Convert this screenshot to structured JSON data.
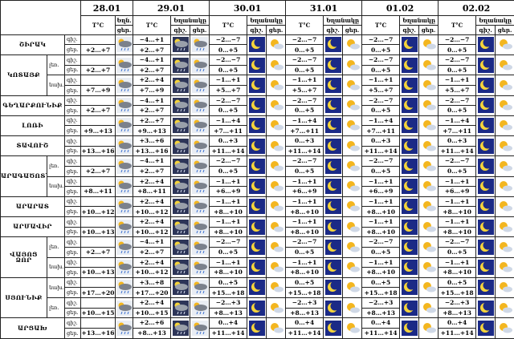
{
  "header": {
    "dates": [
      "28.01",
      "29.01",
      "30.01",
      "31.01",
      "01.02",
      "02.02"
    ],
    "temp_label": "T°C",
    "weather_short": "Եղն.",
    "weather_label": "Եղանակը",
    "night_label": "գիշ.",
    "day_label": "ցեր."
  },
  "regions": [
    {
      "name": "ՇԻՐԱԿ",
      "night": [
        "−4…+1",
        "−2…−7",
        "−2…−7",
        "−2…−7",
        "−2…−7"
      ],
      "day": [
        "+2…+7",
        "+2…+7",
        "0…+5",
        "0…+5",
        "0…+5",
        "0…+5"
      ]
    },
    {
      "name": "ԿՈՏԱՅՔ",
      "zones": [
        {
          "label": "լեռ.",
          "night": [
            "−4…+1",
            "−2…−7",
            "−2…−7",
            "−2…−7",
            "−2…−7"
          ],
          "day": [
            "+2…+7",
            "+2…+7",
            "0…+5",
            "0…+5",
            "0…+5",
            "0…+5"
          ]
        },
        {
          "label": "նախ.",
          "night": [
            "+2…+4",
            "−1…+1",
            "−1…+1",
            "−1…+1",
            "−1…+1"
          ],
          "day": [
            "+7…+9",
            "+7…+9",
            "+5…+7",
            "+5…+7",
            "+5…+7",
            "+5…+7"
          ]
        }
      ]
    },
    {
      "name": "ԳԵՂԱՐՔՈՒՆԻՔ",
      "night": [
        "−4…+1",
        "−2…−7",
        "−2…−7",
        "−2…−7",
        "−2…−7"
      ],
      "day": [
        "+2…+7",
        "+2…+7",
        "0…+5",
        "0…+5",
        "0…+5",
        "0…+5"
      ]
    },
    {
      "name": "ԼՈՌԻ",
      "night": [
        "+2…+7",
        "−1…+4",
        "−1…+4",
        "−1…+4",
        "−1…+4"
      ],
      "day": [
        "+9…+13",
        "+9…+13",
        "+7…+11",
        "+7…+11",
        "+7…+11",
        "+7…+11"
      ]
    },
    {
      "name": "ՏԱՎՈՒՇ",
      "night": [
        "+3…+6",
        "0…+3",
        "0…+3",
        "0…+3",
        "0…+3"
      ],
      "day": [
        "+13…+16",
        "+13…+16",
        "+11…+14",
        "+11…+14",
        "+11…+14",
        "+11…+14"
      ]
    },
    {
      "name": "ԱՐԱԳԱԾՈՏՆ",
      "zones": [
        {
          "label": "լեռ.",
          "night": [
            "−4…+1",
            "−2…−7",
            "−2…−7",
            "−2…−7",
            "−2…−7"
          ],
          "day": [
            "+2…+7",
            "+2…+7",
            "0…+5",
            "0…+5",
            "0…+5",
            "0…+5"
          ]
        },
        {
          "label": "նախ.",
          "night": [
            "+2…+4",
            "−1…+1",
            "−1…+1",
            "−1…+1",
            "−1…+1"
          ],
          "day": [
            "+8…+11",
            "+8…+11",
            "+6…+9",
            "+6…+9",
            "+6…+9",
            "+6…+9"
          ]
        }
      ]
    },
    {
      "name": "ԱՐԱՐԱՏ",
      "night": [
        "+2…+4",
        "−1…+1",
        "−1…+1",
        "−1…+1",
        "−1…+1"
      ],
      "day": [
        "+10…+12",
        "+10…+12",
        "+8…+10",
        "+8…+10",
        "+8…+10",
        "+8…+10"
      ]
    },
    {
      "name": "ԱՐՄԱՎԻՐ",
      "night": [
        "+2…+4",
        "−1…+1",
        "−1…+1",
        "−1…+1",
        "−1…+1"
      ],
      "day": [
        "+10…+13",
        "+10…+12",
        "+8…+10",
        "+8…+10",
        "+8…+10",
        "+8…+10"
      ]
    },
    {
      "name": "ՎԱՅՈՑ ՁՈՐ",
      "zones": [
        {
          "label": "լեռ.",
          "night": [
            "−4…+1",
            "−2…−7",
            "−2…−7",
            "−2…−7",
            "−2…−7"
          ],
          "day": [
            "+2…+7",
            "+2…+7",
            "0…+5",
            "0…+5",
            "0…+5",
            "0…+5"
          ]
        },
        {
          "label": "նախ.",
          "night": [
            "+2…+4",
            "−1…+1",
            "−1…+1",
            "−1…+1",
            "−1…+1"
          ],
          "day": [
            "+10…+13",
            "+10…+12",
            "+8…+10",
            "+8…+10",
            "+8…+10",
            "+8…+10"
          ]
        }
      ]
    },
    {
      "name": "ՍՅՈՒՆԻՔ",
      "zones": [
        {
          "label": "նախ.",
          "night": [
            "+3…+8",
            "0…+5",
            "0…+5",
            "0…+5",
            "0…+5"
          ],
          "day": [
            "+17…+20",
            "+17…+20",
            "+15…+18",
            "+15…+18",
            "+15…+18",
            "+15…+18"
          ]
        },
        {
          "label": "լեռ.",
          "night": [
            "+2…+4",
            "−2…+3",
            "−2…+3",
            "−2…+3",
            "−2…+3"
          ],
          "day": [
            "+10…+15",
            "+10…+15",
            "+8…+13",
            "+8…+13",
            "+8…+13",
            "+8…+13"
          ]
        }
      ]
    },
    {
      "name": "ԱՐՑԱԽ",
      "night": [
        "+2…+6",
        "0…+4",
        "0…+4",
        "0…+4",
        "0…+4"
      ],
      "day": [
        "+13…+16",
        "+8…+13",
        "+11…+14",
        "+11…+14",
        "+11…+14",
        "+11…+14"
      ]
    }
  ]
}
